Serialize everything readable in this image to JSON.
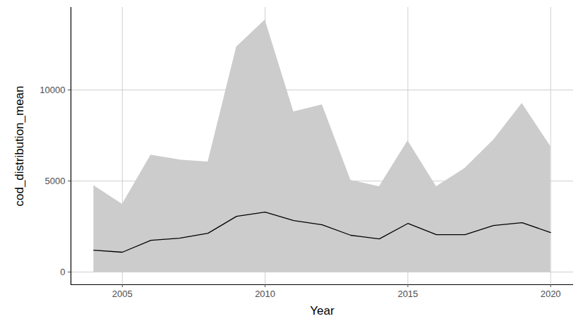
{
  "chart_data": {
    "type": "line",
    "x_label": "Year",
    "y_label": "cod_distribution_mean",
    "x": [
      2004,
      2005,
      2006,
      2007,
      2008,
      2009,
      2010,
      2011,
      2012,
      2013,
      2014,
      2015,
      2016,
      2017,
      2018,
      2019,
      2020
    ],
    "values": [
      1200,
      1090,
      1740,
      1860,
      2130,
      3060,
      3290,
      2830,
      2600,
      2020,
      1820,
      2670,
      2050,
      2050,
      2560,
      2710,
      2170
    ],
    "color": "#000000",
    "band": {
      "lower": [
        0,
        0,
        0,
        0,
        0,
        0,
        0,
        0,
        0,
        0,
        0,
        0,
        0,
        0,
        0,
        0,
        0
      ],
      "upper": [
        4750,
        3720,
        6430,
        6160,
        6050,
        12360,
        13840,
        8800,
        9190,
        5040,
        4690,
        7210,
        4690,
        5700,
        7250,
        9260,
        6900
      ],
      "color": "#cccccc"
    },
    "xlim": [
      2003.2,
      2020.8
    ],
    "ylim": [
      -692,
      14532
    ],
    "xticks": [
      2005,
      2010,
      2015,
      2020
    ],
    "yticks": [
      0,
      5000,
      10000
    ],
    "grid": true
  }
}
